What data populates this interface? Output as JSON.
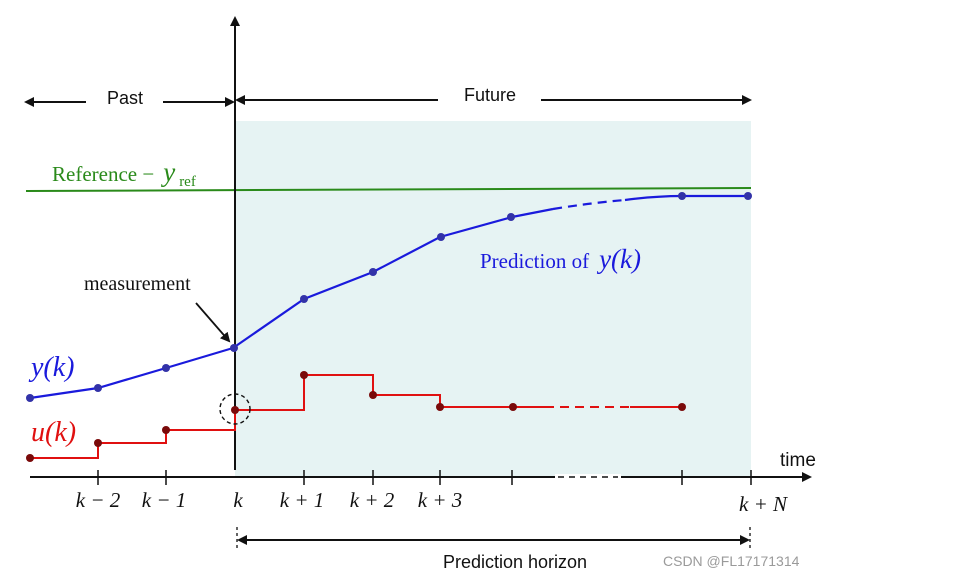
{
  "labels": {
    "past": "Past",
    "future": "Future",
    "reference_prefix": "Reference −",
    "reference_var": "y",
    "reference_sub": "ref",
    "prediction_prefix": "Prediction of",
    "prediction_var": "y(k)",
    "measurement": "measurement",
    "y_label": "y(k)",
    "u_label": "u(k)",
    "time": "time",
    "prediction_horizon": "Prediction horizon",
    "watermark": "CSDN @FL17171314"
  },
  "ticks": [
    "k − 2",
    "k − 1",
    "k",
    "k + 1",
    "k + 2",
    "k + 3",
    "k + N"
  ],
  "colors": {
    "output": "#1a1adc",
    "input": "#e01010",
    "input_point": "#7a0a0a",
    "reference": "#2a8a1a",
    "future_region": "#e6f3f3",
    "axis": "#111111"
  }
}
